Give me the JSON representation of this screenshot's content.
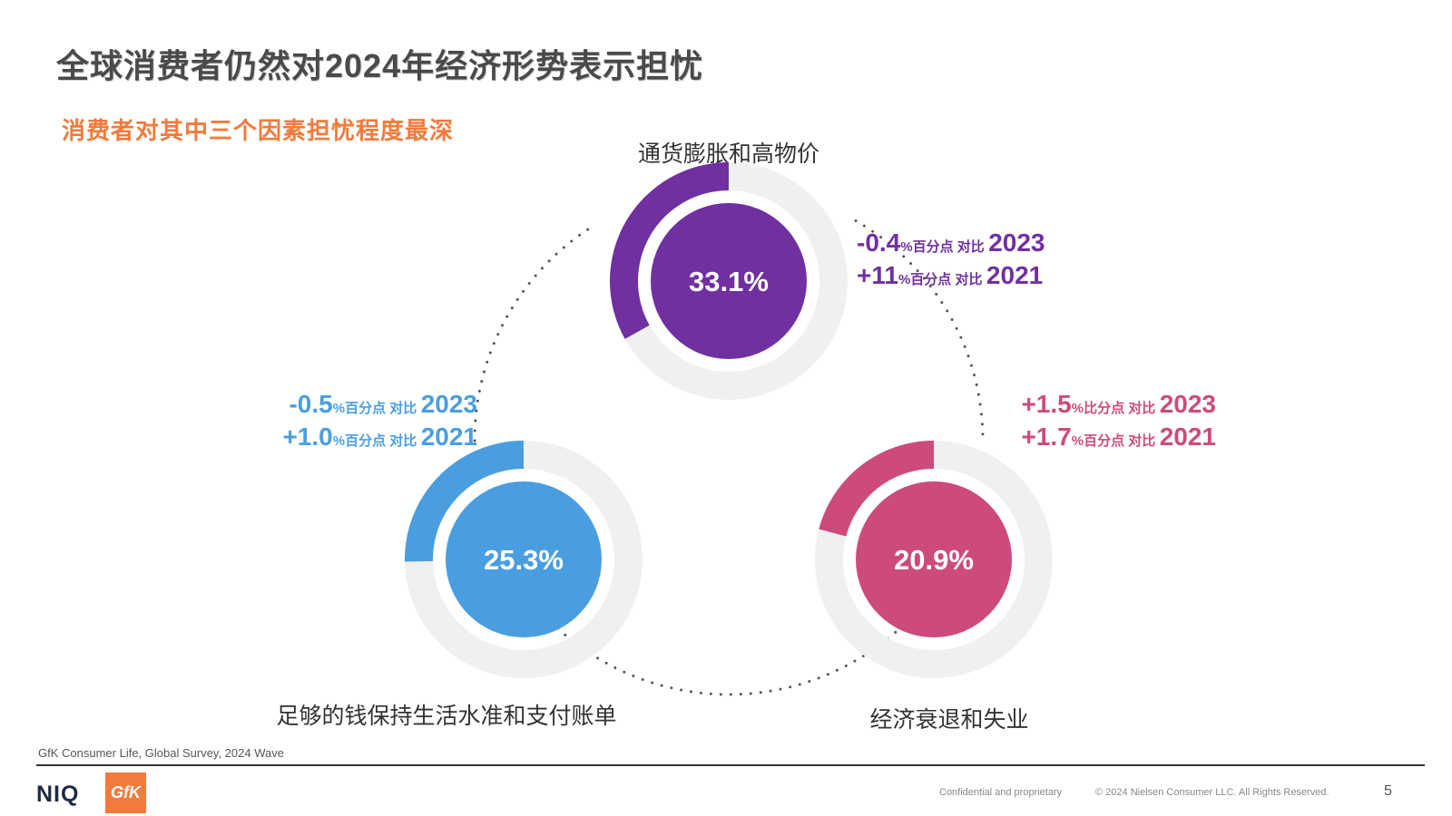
{
  "title": "全球消费者仍然对2024年经济形势表示担忧",
  "subtitle": "消费者对其中三个因素担忧程度最深",
  "chart_data": {
    "type": "pie",
    "title": "全球消费者仍然对2024年经济形势表示担忧",
    "subtitle": "消费者对其中三个因素担忧程度最深",
    "items": [
      {
        "key": "inflation",
        "category": "通货膨胀和高物价",
        "value": 33.1,
        "value_label": "33.1%",
        "color": "#7030a0",
        "changes": [
          {
            "delta": "-0.4",
            "unit": "%百分点 对比",
            "year": "2023"
          },
          {
            "delta": "+11",
            "unit": "%百分点 对比",
            "year": "2021"
          }
        ]
      },
      {
        "key": "living",
        "category": "足够的钱保持生活水准和支付账单",
        "value": 25.3,
        "value_label": "25.3%",
        "color": "#4a9ee0",
        "changes": [
          {
            "delta": "-0.5",
            "unit": "%百分点 对比",
            "year": "2023"
          },
          {
            "delta": "+1.0",
            "unit": "%百分点 对比",
            "year": "2021"
          }
        ]
      },
      {
        "key": "recession",
        "category": "经济衰退和失业",
        "value": 20.9,
        "value_label": "20.9%",
        "color": "#cc4b7c",
        "changes": [
          {
            "delta": "+1.5",
            "unit": "%比分点 对比",
            "year": "2023"
          },
          {
            "delta": "+1.7",
            "unit": "%百分点 对比",
            "year": "2021"
          }
        ]
      }
    ],
    "track_color": "#f0f0f0"
  },
  "footer": {
    "source": "GfK Consumer Life, Global Survey, 2024 Wave",
    "confidential": "Confidential and proprietary",
    "copyright": "© 2024 Nielsen Consumer LLC. All Rights Reserved.",
    "page": "5",
    "logo_niq": "NIQ",
    "logo_gfk": "GfK"
  }
}
